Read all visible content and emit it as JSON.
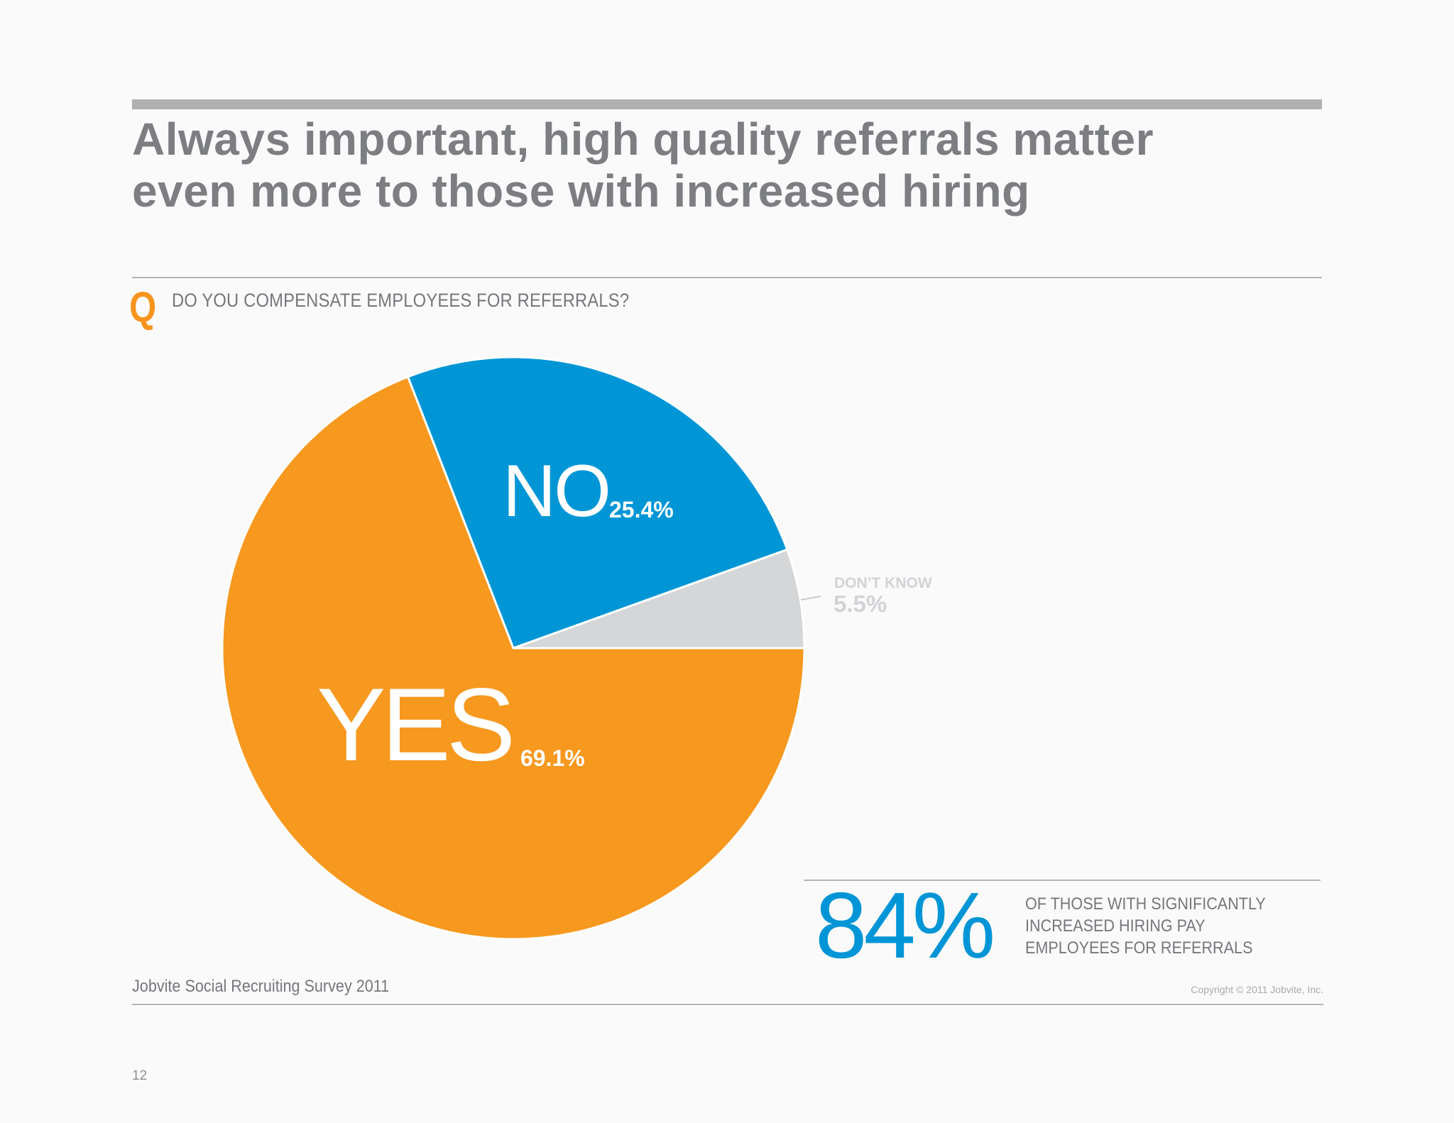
{
  "slide": {
    "title_lines": [
      "Always important, high quality referrals matter",
      "even more to those with increased hiring"
    ],
    "question_marker": "Q",
    "question": "DO YOU COMPENSATE EMPLOYEES FOR REFERRALS?",
    "callout": {
      "value": "84%",
      "text_lines": [
        "OF THOSE WITH SIGNIFICANTLY",
        "INCREASED HIRING PAY",
        "EMPLOYEES FOR REFERRALS"
      ],
      "color": "#0095d6"
    },
    "source": "Jobvite Social Recruiting Survey 2011",
    "copyright": "Copyright © 2011 Jobvite, Inc.",
    "page_number": "12"
  },
  "labels": {
    "no": {
      "name": "NO",
      "pct": "25.4%"
    },
    "yes": {
      "name": "YES",
      "pct": "69.1%"
    },
    "dont_know": {
      "name": "DON’T KNOW",
      "pct": "5.5%"
    }
  },
  "colors": {
    "yes": "#f7981f",
    "no": "#0096d6",
    "dont_know": "#d5d6d8",
    "title": "#7d7e82",
    "accent_q": "#f7941d"
  },
  "chart_data": {
    "type": "pie",
    "title": "DO YOU COMPENSATE EMPLOYEES FOR REFERRALS?",
    "categories": [
      "Yes",
      "No",
      "Don't Know"
    ],
    "values": [
      69.1,
      25.4,
      5.5
    ],
    "unit": "%",
    "colors": [
      "#f7981f",
      "#0096d6",
      "#d5d6d8"
    ],
    "start_angle_deg": 0,
    "direction": "counterclockwise from 3 o'clock: Don't Know, No, Yes",
    "legend": "none (direct labels)",
    "annotation": "84% of those with significantly increased hiring pay employees for referrals"
  }
}
